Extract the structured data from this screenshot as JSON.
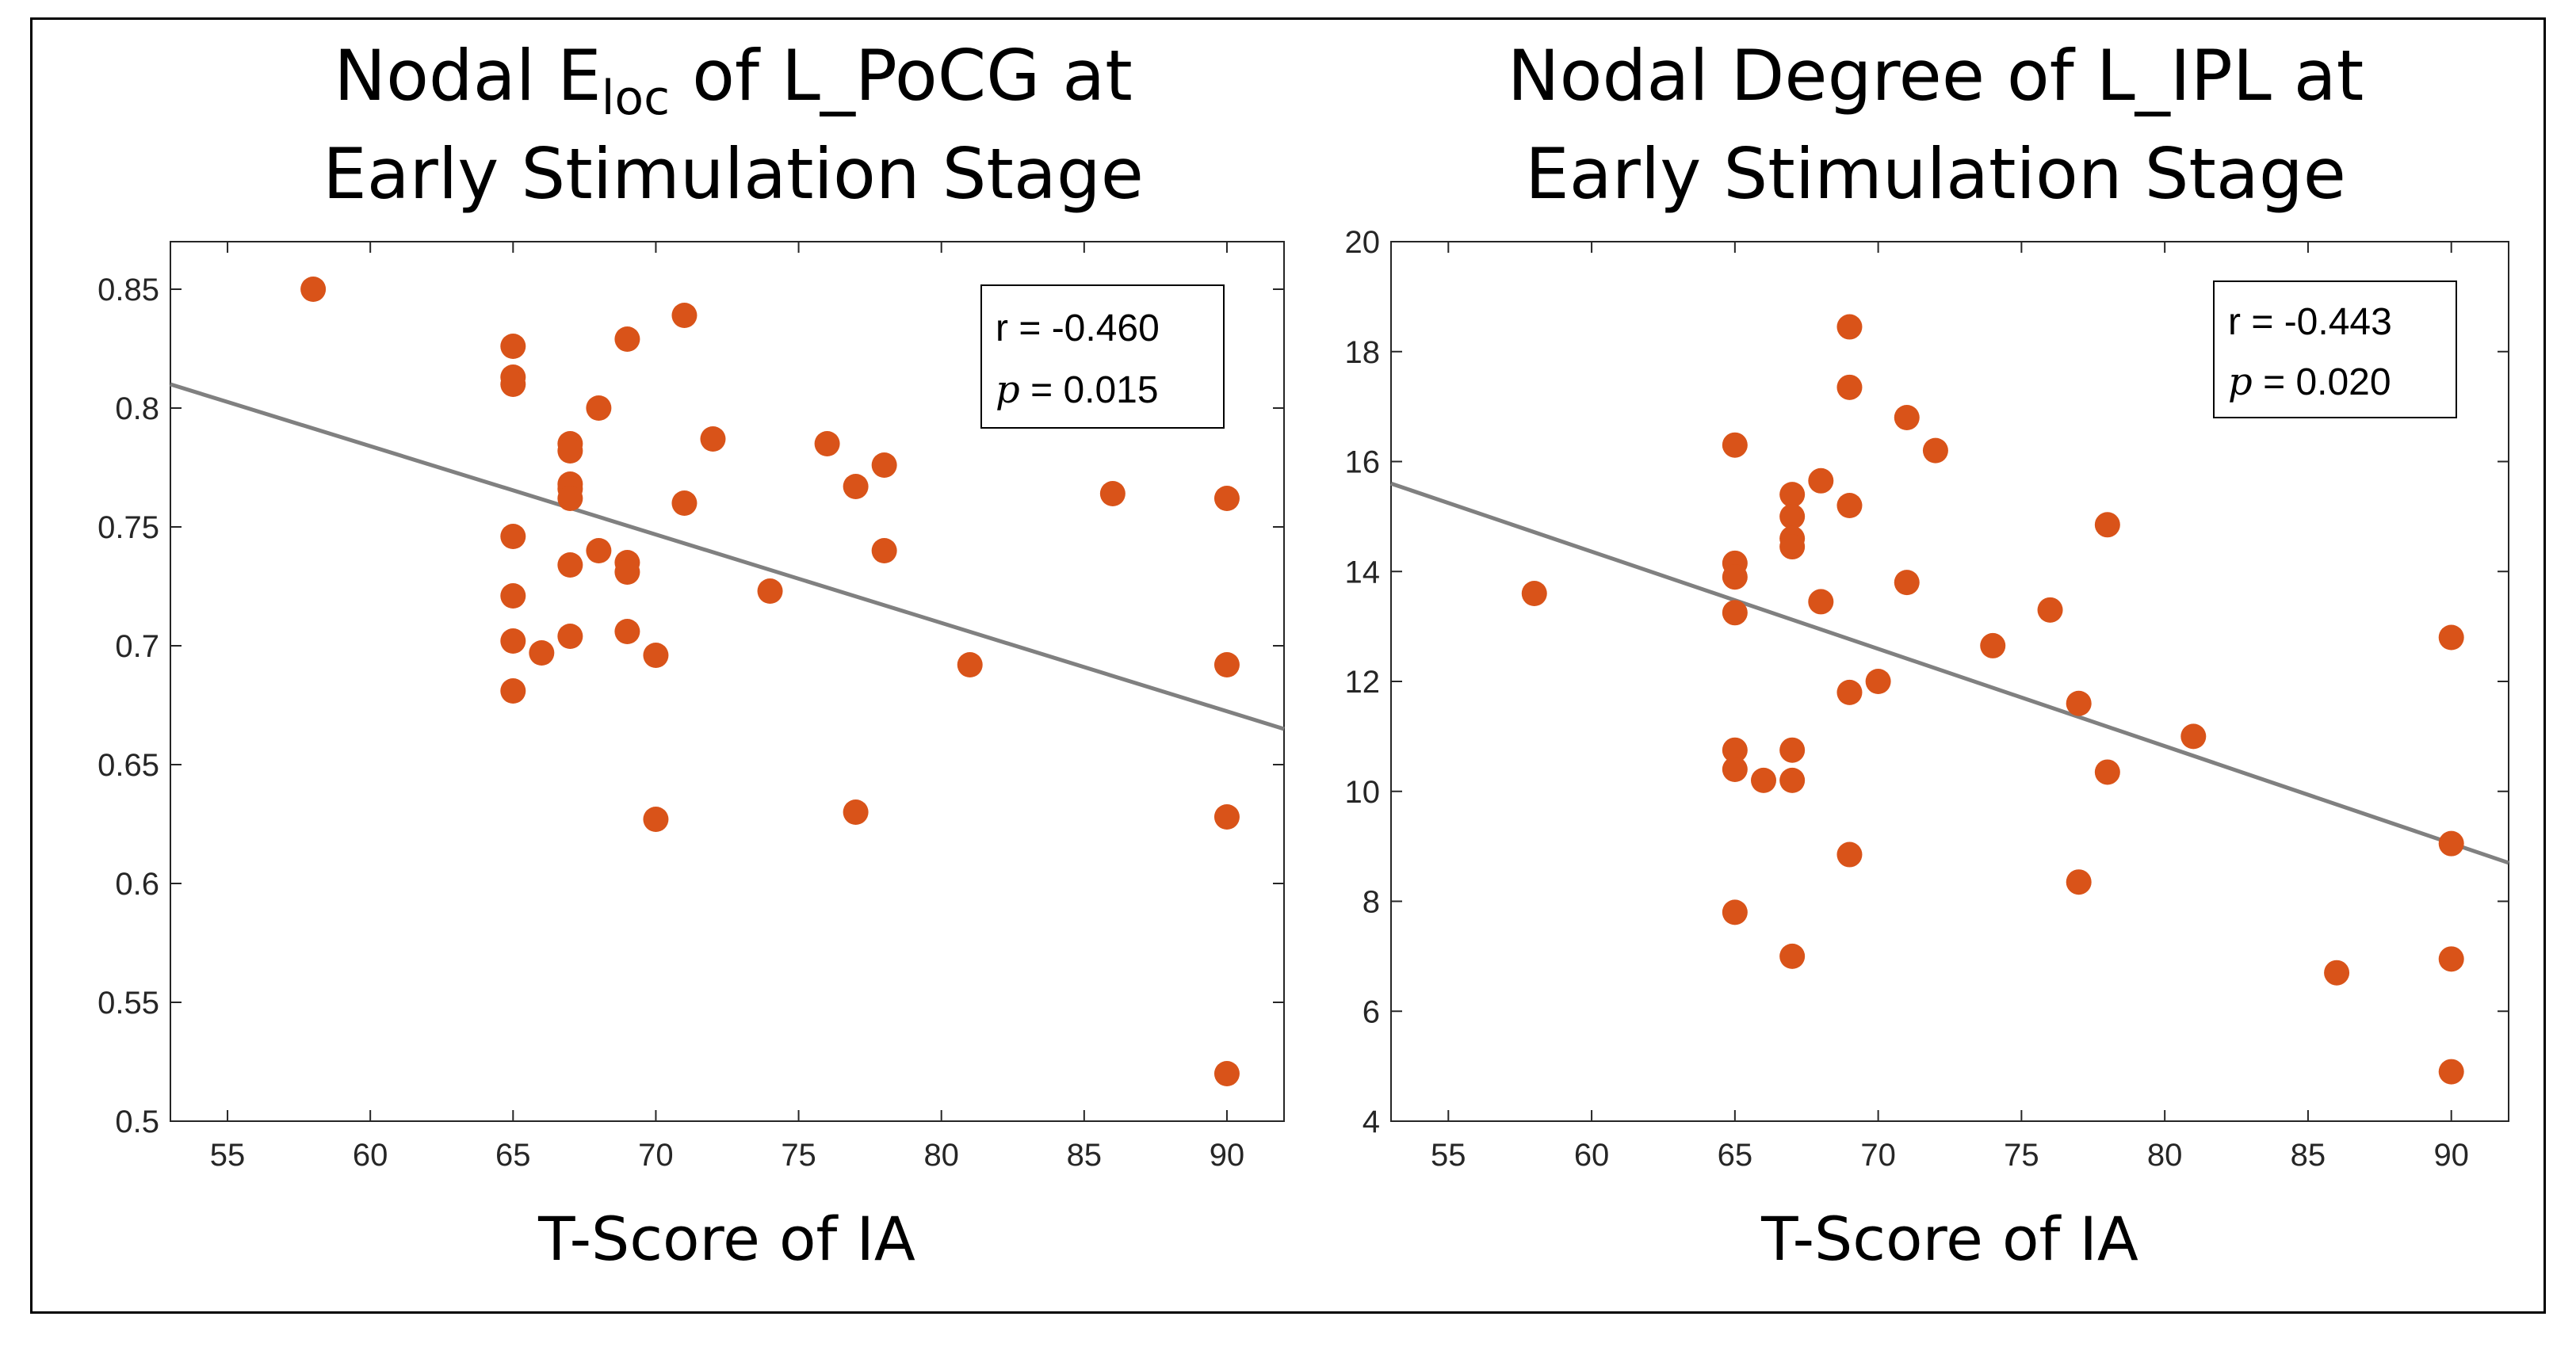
{
  "chart_data": [
    {
      "type": "scatter",
      "title_line1_pre": "Nodal E",
      "title_line1_sub": "loc",
      "title_line1_post": " of L_PoCG at",
      "title_line2": "Early Stimulation Stage",
      "xlabel": "T-Score of IA",
      "ylabel": "",
      "xlim": [
        53,
        92
      ],
      "ylim": [
        0.5,
        0.87
      ],
      "xticks": [
        55,
        60,
        65,
        70,
        75,
        80,
        85,
        90
      ],
      "yticks": [
        0.5,
        0.55,
        0.6,
        0.65,
        0.7,
        0.75,
        0.8,
        0.85
      ],
      "ytick_labels": [
        "0.5",
        "0.55",
        "0.6",
        "0.65",
        "0.7",
        "0.75",
        "0.8",
        "0.85"
      ],
      "points": [
        [
          58,
          0.85
        ],
        [
          65,
          0.826
        ],
        [
          65,
          0.813
        ],
        [
          65,
          0.81
        ],
        [
          65,
          0.746
        ],
        [
          65,
          0.721
        ],
        [
          65,
          0.702
        ],
        [
          65,
          0.681
        ],
        [
          66,
          0.697
        ],
        [
          67,
          0.785
        ],
        [
          67,
          0.782
        ],
        [
          67,
          0.768
        ],
        [
          67,
          0.766
        ],
        [
          67,
          0.762
        ],
        [
          67,
          0.734
        ],
        [
          67,
          0.704
        ],
        [
          68,
          0.8
        ],
        [
          68,
          0.74
        ],
        [
          69,
          0.829
        ],
        [
          69,
          0.735
        ],
        [
          69,
          0.731
        ],
        [
          69,
          0.706
        ],
        [
          70,
          0.696
        ],
        [
          70,
          0.627
        ],
        [
          71,
          0.839
        ],
        [
          71,
          0.76
        ],
        [
          72,
          0.787
        ],
        [
          74,
          0.723
        ],
        [
          76,
          0.785
        ],
        [
          77,
          0.767
        ],
        [
          77,
          0.63
        ],
        [
          78,
          0.776
        ],
        [
          78,
          0.74
        ],
        [
          81,
          0.692
        ],
        [
          86,
          0.764
        ],
        [
          90,
          0.762
        ],
        [
          90,
          0.692
        ],
        [
          90,
          0.628
        ],
        [
          90,
          0.52
        ]
      ],
      "fit_line": {
        "x": [
          53,
          92
        ],
        "y": [
          0.81,
          0.665
        ]
      },
      "stats": {
        "r_text": "r = -0.460",
        "p_symbol": "p",
        "p_value": " = 0.015"
      },
      "point_color": "#d95319",
      "line_color": "#808080"
    },
    {
      "type": "scatter",
      "title_line1": "Nodal Degree of L_IPL at",
      "title_line2": "Early Stimulation Stage",
      "xlabel": "T-Score of IA",
      "ylabel": "",
      "xlim": [
        53,
        92
      ],
      "ylim": [
        4,
        20
      ],
      "xticks": [
        55,
        60,
        65,
        70,
        75,
        80,
        85,
        90
      ],
      "yticks": [
        4,
        6,
        8,
        10,
        12,
        14,
        16,
        18,
        20
      ],
      "ytick_labels": [
        "4",
        "6",
        "8",
        "10",
        "12",
        "14",
        "16",
        "18",
        "20"
      ],
      "points": [
        [
          58,
          13.6
        ],
        [
          65,
          16.3
        ],
        [
          65,
          14.15
        ],
        [
          65,
          13.9
        ],
        [
          65,
          13.25
        ],
        [
          65,
          10.75
        ],
        [
          65,
          10.4
        ],
        [
          65,
          7.8
        ],
        [
          66,
          10.2
        ],
        [
          67,
          15.4
        ],
        [
          67,
          15.0
        ],
        [
          67,
          14.6
        ],
        [
          67,
          14.45
        ],
        [
          67,
          10.75
        ],
        [
          67,
          10.2
        ],
        [
          67,
          7.0
        ],
        [
          68,
          15.65
        ],
        [
          68,
          13.45
        ],
        [
          69,
          18.45
        ],
        [
          69,
          17.35
        ],
        [
          69,
          15.2
        ],
        [
          69,
          11.8
        ],
        [
          69,
          8.85
        ],
        [
          70,
          12.0
        ],
        [
          71,
          16.8
        ],
        [
          71,
          13.8
        ],
        [
          72,
          16.2
        ],
        [
          74,
          12.65
        ],
        [
          76,
          13.3
        ],
        [
          77,
          11.6
        ],
        [
          77,
          8.35
        ],
        [
          78,
          14.85
        ],
        [
          78,
          10.35
        ],
        [
          81,
          11.0
        ],
        [
          86,
          6.7
        ],
        [
          90,
          12.8
        ],
        [
          90,
          9.05
        ],
        [
          90,
          6.95
        ],
        [
          90,
          4.9
        ]
      ],
      "fit_line": {
        "x": [
          53,
          92
        ],
        "y": [
          15.6,
          8.7
        ]
      },
      "stats": {
        "r_text": "r = -0.443",
        "p_symbol": "p",
        "p_value": " = 0.020"
      },
      "point_color": "#d95319",
      "line_color": "#808080"
    }
  ]
}
